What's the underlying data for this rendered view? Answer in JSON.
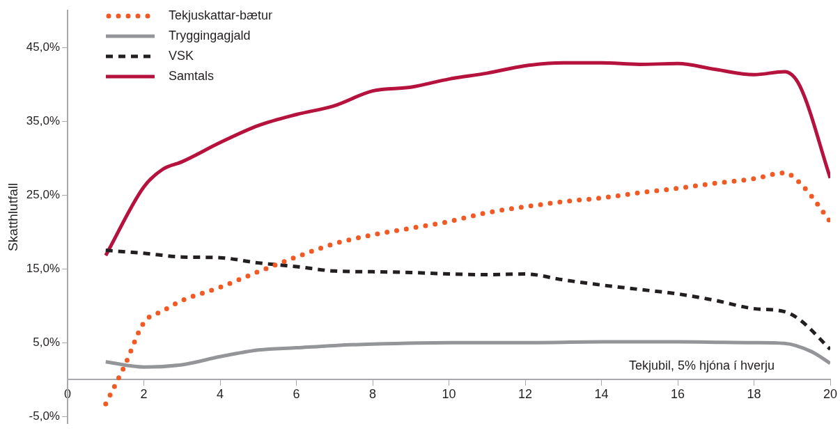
{
  "chart_data": {
    "type": "line",
    "xlabel": "Tekjubil, 5% hjóna í hverju",
    "ylabel": "Skatthlutfall",
    "xlim": [
      0,
      20
    ],
    "xticks": [
      0,
      2,
      4,
      6,
      8,
      10,
      12,
      14,
      16,
      18,
      20
    ],
    "ylim": [
      -6,
      50
    ],
    "yticks": [
      {
        "value": -5,
        "label": "-5,0%"
      },
      {
        "value": 5,
        "label": "5,0%"
      },
      {
        "value": 15,
        "label": "15,0%"
      },
      {
        "value": 25,
        "label": "25,0%"
      },
      {
        "value": 35,
        "label": "35,0%"
      },
      {
        "value": 45,
        "label": "45,0%"
      }
    ],
    "grid": false,
    "legend": "top left",
    "marker": "none",
    "series": [
      {
        "name": "Tekjuskattar-bætur",
        "color": "#f15a24",
        "line_style": "dotted",
        "x": [
          1,
          1.5,
          2,
          2.5,
          3,
          4,
          5,
          6,
          7,
          8,
          9,
          10,
          11,
          12,
          13,
          14,
          15,
          16,
          17,
          18,
          18.8,
          19.3,
          20
        ],
        "values": [
          -3.3,
          1.9,
          7.7,
          9.3,
          10.7,
          12.5,
          14.6,
          16.6,
          18.4,
          19.6,
          20.5,
          21.4,
          22.6,
          23.4,
          24.1,
          24.6,
          25.3,
          25.9,
          26.6,
          27.2,
          28.0,
          26.1,
          21.4
        ]
      },
      {
        "name": "Tryggingagjald",
        "color": "#939598",
        "line_style": "solid",
        "x": [
          1,
          2,
          3,
          4,
          5,
          6,
          7,
          8,
          10,
          12,
          14,
          16,
          18,
          18.8,
          19.5,
          20
        ],
        "values": [
          2.4,
          1.7,
          2.0,
          3.1,
          4.0,
          4.3,
          4.6,
          4.8,
          5.0,
          5.0,
          5.1,
          5.1,
          5.0,
          4.9,
          3.8,
          2.2
        ]
      },
      {
        "name": "VSK",
        "color": "#231f20",
        "line_style": "dashed",
        "x": [
          1,
          2,
          3,
          4,
          5,
          6,
          7,
          8,
          9,
          10,
          11,
          12,
          13,
          14,
          15,
          16,
          17,
          18,
          18.8,
          19.2,
          20
        ],
        "values": [
          17.5,
          17.1,
          16.6,
          16.5,
          15.8,
          15.3,
          14.7,
          14.6,
          14.5,
          14.3,
          14.2,
          14.3,
          13.5,
          12.8,
          12.2,
          11.6,
          10.7,
          9.6,
          9.2,
          8.1,
          4.1
        ]
      },
      {
        "name": "Samtals",
        "color": "#b5123e",
        "line_style": "solid",
        "x": [
          1,
          2,
          2.5,
          3,
          4,
          5,
          6,
          7,
          8,
          9,
          10,
          11,
          12,
          13,
          14,
          15,
          16,
          17,
          18,
          18.8,
          19.2,
          20
        ],
        "values": [
          16.8,
          26.1,
          28.5,
          29.5,
          32.1,
          34.4,
          35.9,
          37.1,
          39.1,
          39.6,
          40.7,
          41.5,
          42.5,
          42.9,
          42.9,
          42.7,
          42.8,
          42.0,
          41.3,
          41.7,
          39.8,
          27.3
        ]
      }
    ]
  }
}
